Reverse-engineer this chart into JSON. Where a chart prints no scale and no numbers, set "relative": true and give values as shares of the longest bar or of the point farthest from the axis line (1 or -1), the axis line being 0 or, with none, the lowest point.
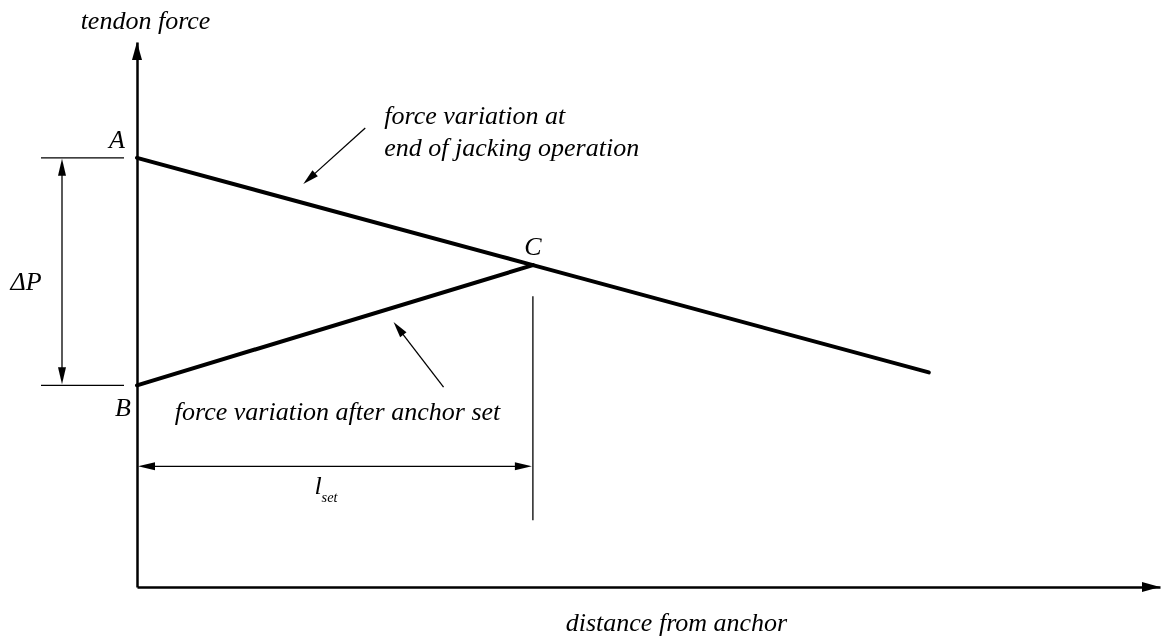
{
  "chart_data": {
    "type": "line",
    "xlabel": "distance from anchor",
    "ylabel": "tendon force",
    "relative": true,
    "categories": [
      null,
      null,
      null
    ],
    "series": [
      {
        "color": "#000000",
        "values": [
          1,
          0.75,
          0.5
        ]
      },
      {
        "color": "#000000",
        "values": [
          0.47,
          0.75,
          null
        ]
      }
    ],
    "annotations": [
      "A",
      "B",
      {
        "text": "C",
        "y": 0.75
      },
      "ΔP",
      "force variation at\nend of jacking operation",
      "force variation after anchor set",
      "l$_{set}$"
    ]
  }
}
